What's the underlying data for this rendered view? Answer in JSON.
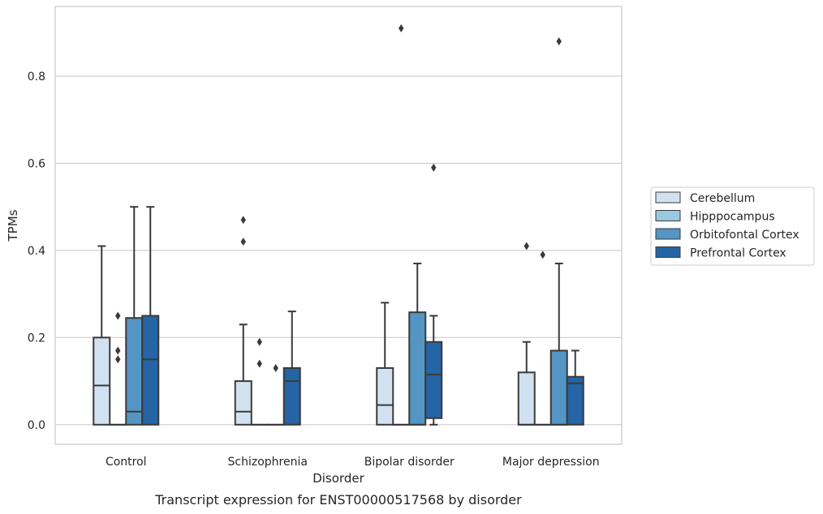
{
  "chart_data": {
    "type": "box",
    "caption": "Transcript expression for ENST00000517568 by disorder",
    "xlabel": "Disorder",
    "ylabel": "TPMs",
    "ylim": [
      -0.045,
      0.96
    ],
    "yticks": [
      "0.0",
      "0.2",
      "0.4",
      "0.6",
      "0.8"
    ],
    "ytick_values": [
      0.0,
      0.2,
      0.4,
      0.6,
      0.8
    ],
    "grid": true,
    "legend_position": "center-right",
    "categories": [
      "Control",
      "Schizophrenia",
      "Bipolar disorder",
      "Major depression"
    ],
    "series": [
      {
        "name": "Cerebellum",
        "color": "#d1e1f0",
        "boxes": [
          {
            "whislo": 0.0,
            "q1": 0.0,
            "med": 0.09,
            "q3": 0.2,
            "whishi": 0.41,
            "fliers": []
          },
          {
            "whislo": 0.0,
            "q1": 0.0,
            "med": 0.03,
            "q3": 0.1,
            "whishi": 0.23,
            "fliers": [
              0.42,
              0.47
            ]
          },
          {
            "whislo": 0.0,
            "q1": 0.0,
            "med": 0.045,
            "q3": 0.13,
            "whishi": 0.28,
            "fliers": []
          },
          {
            "whislo": 0.0,
            "q1": 0.0,
            "med": 0.0,
            "q3": 0.12,
            "whishi": 0.19,
            "fliers": [
              0.41
            ]
          }
        ]
      },
      {
        "name": "Hipppocampus",
        "color": "#9ac8e0",
        "boxes": [
          {
            "whislo": 0.0,
            "q1": 0.0,
            "med": 0.0,
            "q3": 0.0,
            "whishi": 0.0,
            "fliers": [
              0.15,
              0.17,
              0.25
            ]
          },
          {
            "whislo": 0.0,
            "q1": 0.0,
            "med": 0.0,
            "q3": 0.0,
            "whishi": 0.0,
            "fliers": [
              0.14,
              0.19
            ]
          },
          {
            "whislo": 0.0,
            "q1": 0.0,
            "med": 0.0,
            "q3": 0.0,
            "whishi": 0.0,
            "fliers": [
              0.91
            ]
          },
          {
            "whislo": 0.0,
            "q1": 0.0,
            "med": 0.0,
            "q3": 0.0,
            "whishi": 0.0,
            "fliers": [
              0.39
            ]
          }
        ]
      },
      {
        "name": "Orbitofontal Cortex",
        "color": "#5495c4",
        "boxes": [
          {
            "whislo": 0.0,
            "q1": 0.0,
            "med": 0.03,
            "q3": 0.245,
            "whishi": 0.5,
            "fliers": []
          },
          {
            "whislo": 0.0,
            "q1": 0.0,
            "med": 0.0,
            "q3": 0.0,
            "whishi": 0.0,
            "fliers": [
              0.13
            ]
          },
          {
            "whislo": 0.0,
            "q1": 0.0,
            "med": 0.0,
            "q3": 0.258,
            "whishi": 0.37,
            "fliers": []
          },
          {
            "whislo": 0.0,
            "q1": 0.0,
            "med": 0.0,
            "q3": 0.17,
            "whishi": 0.37,
            "fliers": [
              0.88
            ]
          }
        ]
      },
      {
        "name": "Prefrontal Cortex",
        "color": "#2565a6",
        "boxes": [
          {
            "whislo": 0.0,
            "q1": 0.0,
            "med": 0.15,
            "q3": 0.25,
            "whishi": 0.5,
            "fliers": []
          },
          {
            "whislo": 0.0,
            "q1": 0.0,
            "med": 0.1,
            "q3": 0.13,
            "whishi": 0.26,
            "fliers": []
          },
          {
            "whislo": 0.0,
            "q1": 0.015,
            "med": 0.115,
            "q3": 0.19,
            "whishi": 0.25,
            "fliers": [
              0.59
            ]
          },
          {
            "whislo": 0.0,
            "q1": 0.0,
            "med": 0.095,
            "q3": 0.11,
            "whishi": 0.17,
            "fliers": []
          }
        ]
      }
    ]
  }
}
